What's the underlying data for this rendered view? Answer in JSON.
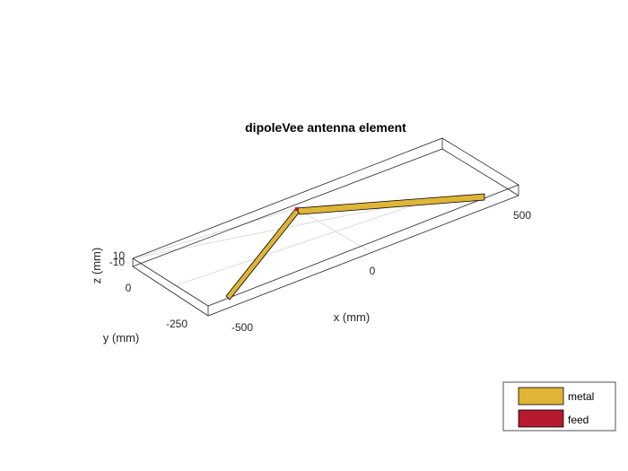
{
  "figure": {
    "title": "dipoleVee antenna element",
    "xlabel": "x (mm)",
    "ylabel": "y (mm)",
    "zlabel": "z (mm)",
    "x_ticks": [
      "-500",
      "0",
      "500"
    ],
    "y_ticks": [
      "-250",
      "0"
    ],
    "z_ticks": [
      "10",
      "-10"
    ],
    "colors": {
      "metal": "#dfb537",
      "feed": "#b71a2f",
      "box_edge": "#262626",
      "grid": "#dcdcdc"
    }
  },
  "legend": {
    "placement": "bottom-right",
    "items": [
      {
        "label": "metal",
        "color": "#dfb537"
      },
      {
        "label": "feed",
        "color": "#b71a2f"
      }
    ]
  },
  "antenna": {
    "type": "dipoleVee",
    "arms": [
      {
        "name": "left-arm",
        "material": "metal"
      },
      {
        "name": "right-arm",
        "material": "metal"
      }
    ],
    "feed": {
      "material": "feed"
    }
  }
}
